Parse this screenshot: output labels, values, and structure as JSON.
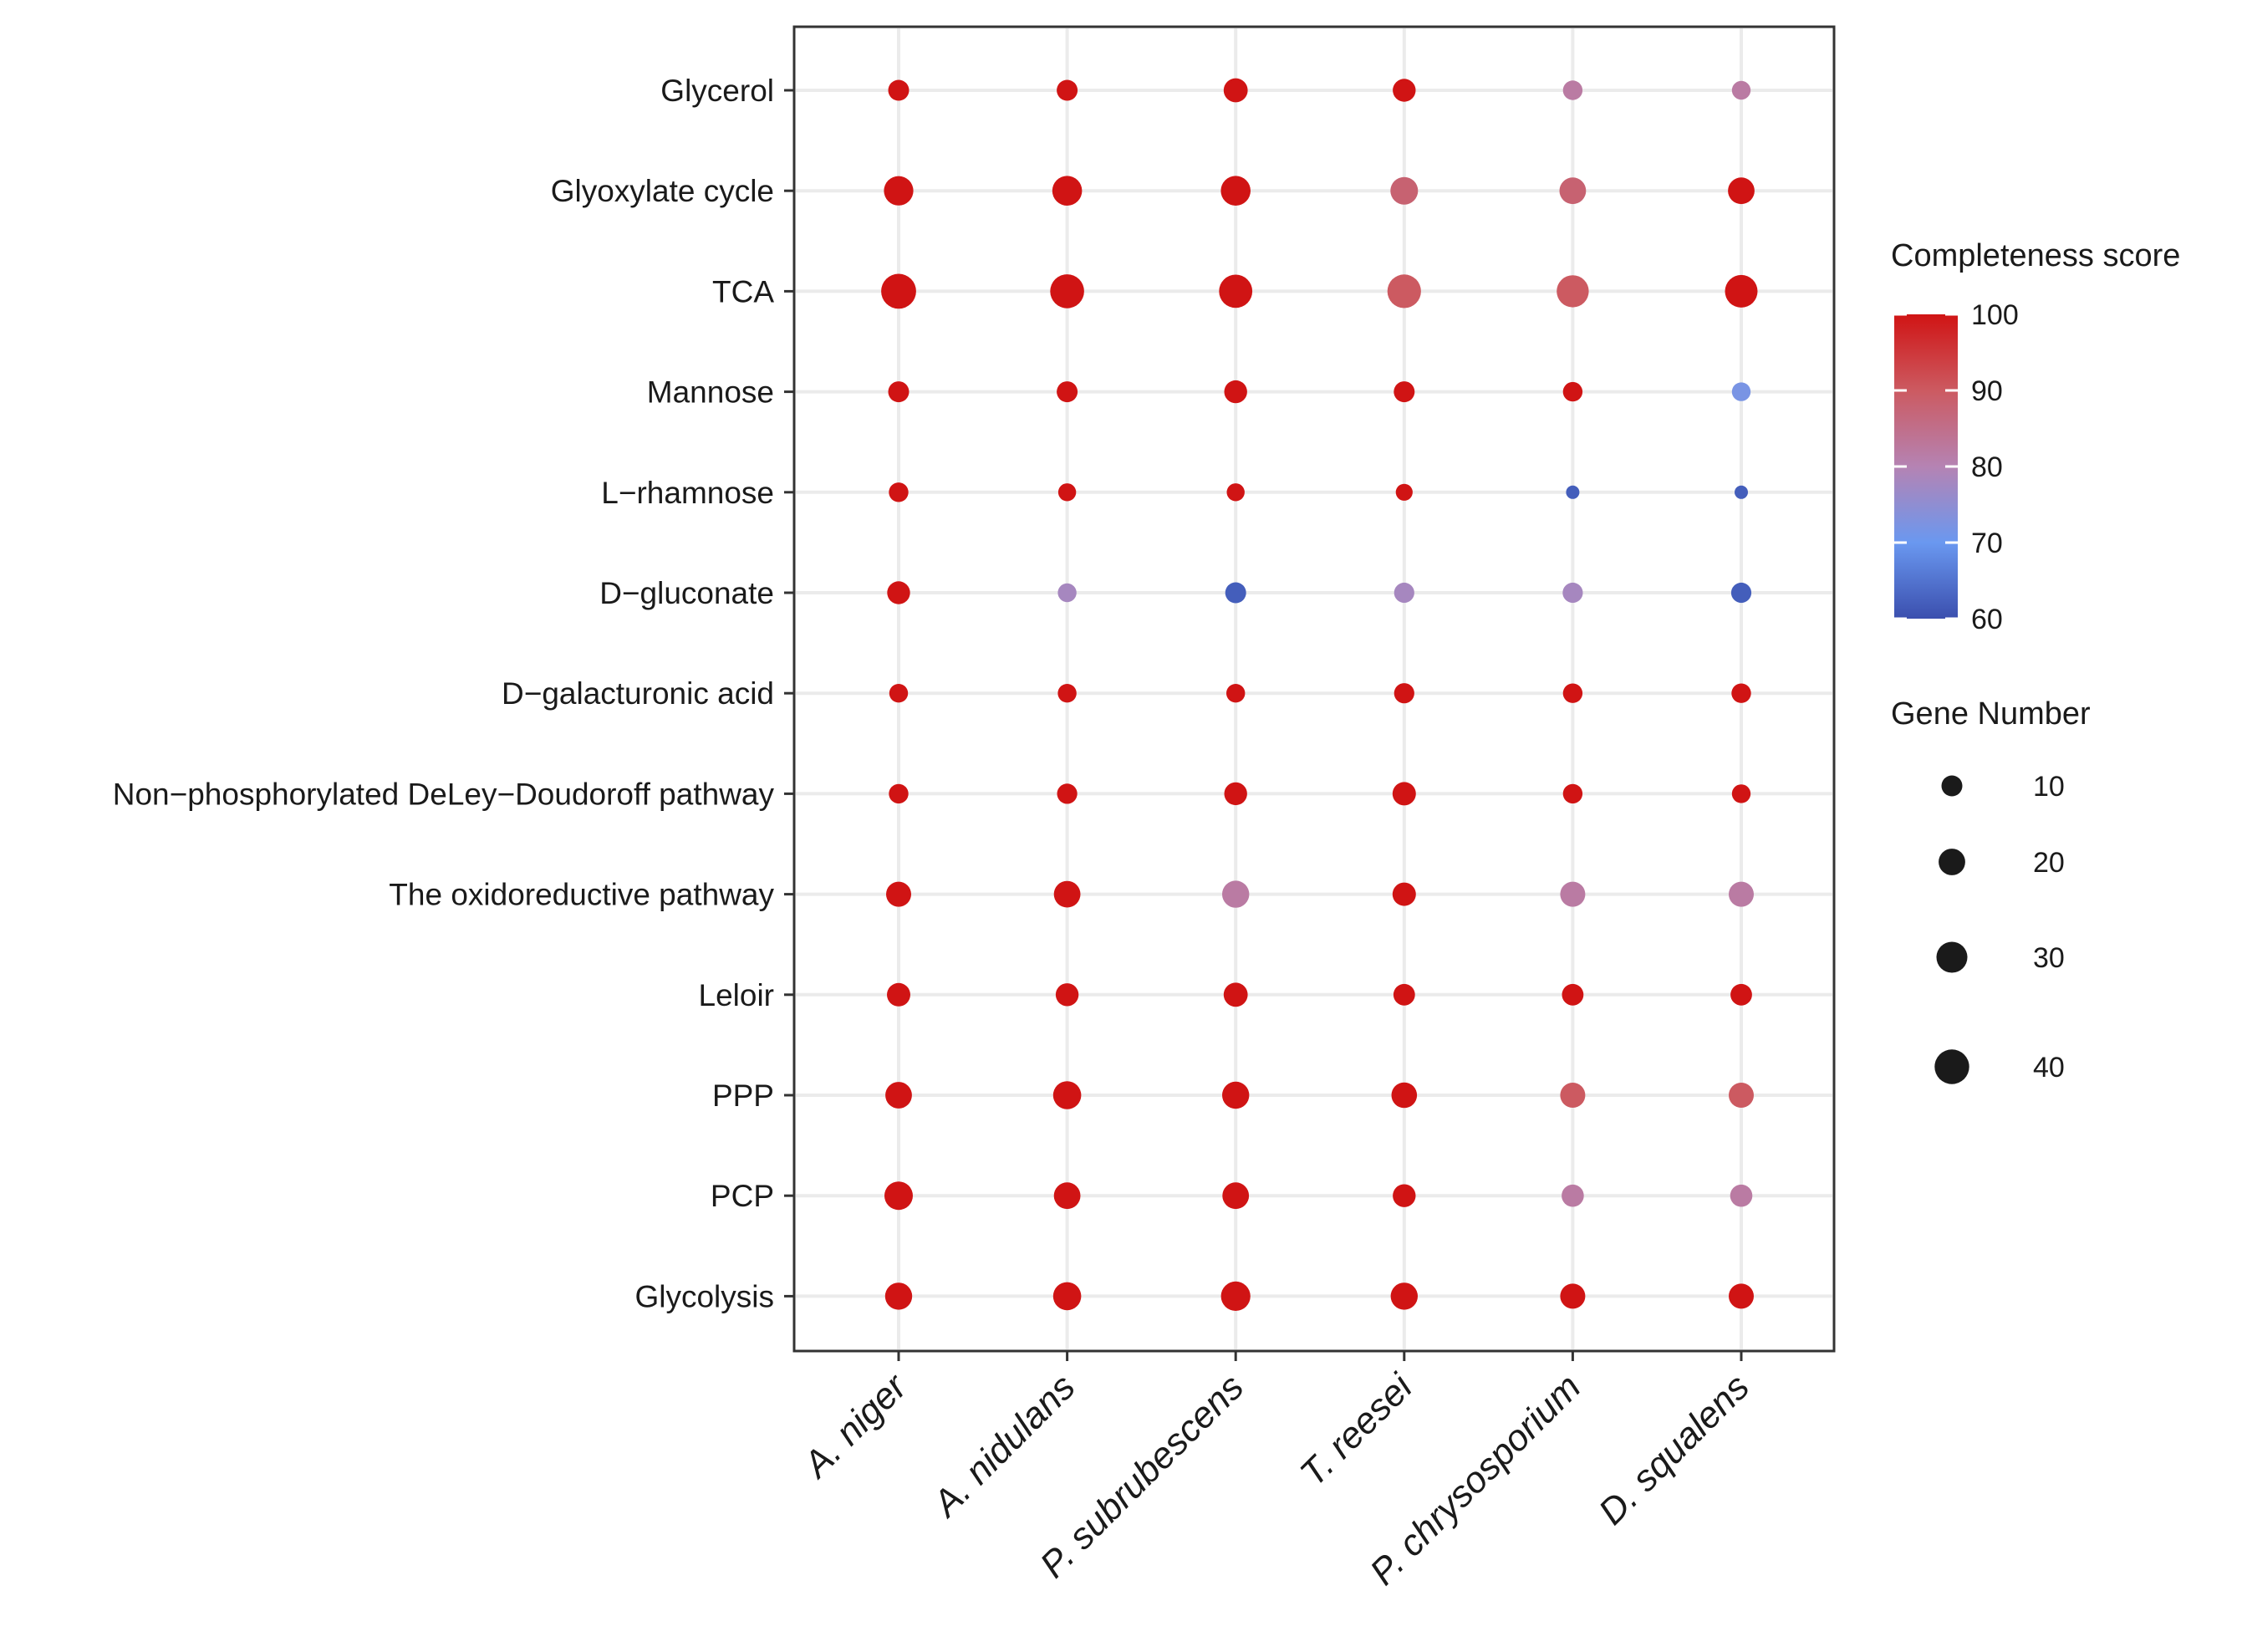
{
  "chart_data": {
    "type": "scatter",
    "title": "",
    "xlabel": "",
    "ylabel": "",
    "x_categories": [
      "A. niger",
      "A. nidulans",
      "P. subrubescens",
      "T. reesei",
      "P. chrysosporium",
      "D. squalens"
    ],
    "y_categories": [
      "Glycerol",
      "Glyoxylate cycle",
      "TCA",
      "Mannose",
      "L−rhamnose",
      "D−gluconate",
      "D−galacturonic acid",
      "Non−phosphorylated DeLey−Doudoroff pathway",
      "The oxidoreductive pathway",
      "Leloir",
      "PPP",
      "PCP",
      "Glycolysis"
    ],
    "points": [
      {
        "x": "A. niger",
        "y": "Glycerol",
        "gene_number": 10,
        "score": 100
      },
      {
        "x": "A. nidulans",
        "y": "Glycerol",
        "gene_number": 10,
        "score": 100
      },
      {
        "x": "P. subrubescens",
        "y": "Glycerol",
        "gene_number": 15,
        "score": 100
      },
      {
        "x": "T. reesei",
        "y": "Glycerol",
        "gene_number": 13,
        "score": 100
      },
      {
        "x": "P. chrysosporium",
        "y": "Glycerol",
        "gene_number": 8,
        "score": 82
      },
      {
        "x": "D. squalens",
        "y": "Glycerol",
        "gene_number": 7,
        "score": 82
      },
      {
        "x": "A. niger",
        "y": "Glyoxylate cycle",
        "gene_number": 26,
        "score": 100
      },
      {
        "x": "A. nidulans",
        "y": "Glyoxylate cycle",
        "gene_number": 27,
        "score": 100
      },
      {
        "x": "P. subrubescens",
        "y": "Glyoxylate cycle",
        "gene_number": 27,
        "score": 100
      },
      {
        "x": "T. reesei",
        "y": "Glyoxylate cycle",
        "gene_number": 22,
        "score": 88
      },
      {
        "x": "P. chrysosporium",
        "y": "Glyoxylate cycle",
        "gene_number": 20,
        "score": 88
      },
      {
        "x": "D. squalens",
        "y": "Glyoxylate cycle",
        "gene_number": 20,
        "score": 100
      },
      {
        "x": "A. niger",
        "y": "TCA",
        "gene_number": 41,
        "score": 100
      },
      {
        "x": "A. nidulans",
        "y": "TCA",
        "gene_number": 38,
        "score": 100
      },
      {
        "x": "P. subrubescens",
        "y": "TCA",
        "gene_number": 36,
        "score": 100
      },
      {
        "x": "T. reesei",
        "y": "TCA",
        "gene_number": 37,
        "score": 90
      },
      {
        "x": "P. chrysosporium",
        "y": "TCA",
        "gene_number": 33,
        "score": 90
      },
      {
        "x": "D. squalens",
        "y": "TCA",
        "gene_number": 34,
        "score": 100
      },
      {
        "x": "A. niger",
        "y": "Mannose",
        "gene_number": 10,
        "score": 100
      },
      {
        "x": "A. nidulans",
        "y": "Mannose",
        "gene_number": 10,
        "score": 100
      },
      {
        "x": "P. subrubescens",
        "y": "Mannose",
        "gene_number": 13,
        "score": 100
      },
      {
        "x": "T. reesei",
        "y": "Mannose",
        "gene_number": 10,
        "score": 100
      },
      {
        "x": "P. chrysosporium",
        "y": "Mannose",
        "gene_number": 8,
        "score": 100
      },
      {
        "x": "D. squalens",
        "y": "Mannose",
        "gene_number": 7,
        "score": 72
      },
      {
        "x": "A. niger",
        "y": "L−rhamnose",
        "gene_number": 8,
        "score": 100
      },
      {
        "x": "A. nidulans",
        "y": "L−rhamnose",
        "gene_number": 6,
        "score": 100
      },
      {
        "x": "P. subrubescens",
        "y": "L−rhamnose",
        "gene_number": 6,
        "score": 100
      },
      {
        "x": "T. reesei",
        "y": "L−rhamnose",
        "gene_number": 5,
        "score": 100
      },
      {
        "x": "P. chrysosporium",
        "y": "L−rhamnose",
        "gene_number": 2,
        "score": 62
      },
      {
        "x": "D. squalens",
        "y": "L−rhamnose",
        "gene_number": 2,
        "score": 62
      },
      {
        "x": "A. niger",
        "y": "D−gluconate",
        "gene_number": 13,
        "score": 100
      },
      {
        "x": "A. nidulans",
        "y": "D−gluconate",
        "gene_number": 7,
        "score": 78
      },
      {
        "x": "P. subrubescens",
        "y": "D−gluconate",
        "gene_number": 10,
        "score": 62
      },
      {
        "x": "T. reesei",
        "y": "D−gluconate",
        "gene_number": 9,
        "score": 78
      },
      {
        "x": "P. chrysosporium",
        "y": "D−gluconate",
        "gene_number": 9,
        "score": 78
      },
      {
        "x": "D. squalens",
        "y": "D−gluconate",
        "gene_number": 9,
        "score": 62
      },
      {
        "x": "A. niger",
        "y": "D−galacturonic acid",
        "gene_number": 7,
        "score": 100
      },
      {
        "x": "A. nidulans",
        "y": "D−galacturonic acid",
        "gene_number": 7,
        "score": 100
      },
      {
        "x": "P. subrubescens",
        "y": "D−galacturonic acid",
        "gene_number": 7,
        "score": 100
      },
      {
        "x": "T. reesei",
        "y": "D−galacturonic acid",
        "gene_number": 9,
        "score": 100
      },
      {
        "x": "P. chrysosporium",
        "y": "D−galacturonic acid",
        "gene_number": 8,
        "score": 100
      },
      {
        "x": "D. squalens",
        "y": "D−galacturonic acid",
        "gene_number": 8,
        "score": 100
      },
      {
        "x": "A. niger",
        "y": "Non−phosphorylated DeLey−Doudoroff pathway",
        "gene_number": 8,
        "score": 100
      },
      {
        "x": "A. nidulans",
        "y": "Non−phosphorylated DeLey−Doudoroff pathway",
        "gene_number": 9,
        "score": 100
      },
      {
        "x": "P. subrubescens",
        "y": "Non−phosphorylated DeLey−Doudoroff pathway",
        "gene_number": 13,
        "score": 100
      },
      {
        "x": "T. reesei",
        "y": "Non−phosphorylated DeLey−Doudoroff pathway",
        "gene_number": 14,
        "score": 100
      },
      {
        "x": "P. chrysosporium",
        "y": "Non−phosphorylated DeLey−Doudoroff pathway",
        "gene_number": 8,
        "score": 100
      },
      {
        "x": "D. squalens",
        "y": "Non−phosphorylated DeLey−Doudoroff pathway",
        "gene_number": 7,
        "score": 100
      },
      {
        "x": "A. niger",
        "y": "The oxidoreductive pathway",
        "gene_number": 17,
        "score": 100
      },
      {
        "x": "A. nidulans",
        "y": "The oxidoreductive pathway",
        "gene_number": 20,
        "score": 100
      },
      {
        "x": "P. subrubescens",
        "y": "The oxidoreductive pathway",
        "gene_number": 21,
        "score": 82
      },
      {
        "x": "T. reesei",
        "y": "The oxidoreductive pathway",
        "gene_number": 14,
        "score": 100
      },
      {
        "x": "P. chrysosporium",
        "y": "The oxidoreductive pathway",
        "gene_number": 17,
        "score": 82
      },
      {
        "x": "D. squalens",
        "y": "The oxidoreductive pathway",
        "gene_number": 17,
        "score": 82
      },
      {
        "x": "A. niger",
        "y": "Leloir",
        "gene_number": 14,
        "score": 100
      },
      {
        "x": "A. nidulans",
        "y": "Leloir",
        "gene_number": 13,
        "score": 100
      },
      {
        "x": "P. subrubescens",
        "y": "Leloir",
        "gene_number": 15,
        "score": 100
      },
      {
        "x": "T. reesei",
        "y": "Leloir",
        "gene_number": 11,
        "score": 100
      },
      {
        "x": "P. chrysosporium",
        "y": "Leloir",
        "gene_number": 11,
        "score": 100
      },
      {
        "x": "D. squalens",
        "y": "Leloir",
        "gene_number": 11,
        "score": 100
      },
      {
        "x": "A. niger",
        "y": "PPP",
        "gene_number": 20,
        "score": 100
      },
      {
        "x": "A. nidulans",
        "y": "PPP",
        "gene_number": 23,
        "score": 100
      },
      {
        "x": "P. subrubescens",
        "y": "PPP",
        "gene_number": 21,
        "score": 100
      },
      {
        "x": "T. reesei",
        "y": "PPP",
        "gene_number": 18,
        "score": 100
      },
      {
        "x": "P. chrysosporium",
        "y": "PPP",
        "gene_number": 17,
        "score": 90
      },
      {
        "x": "D. squalens",
        "y": "PPP",
        "gene_number": 17,
        "score": 90
      },
      {
        "x": "A. niger",
        "y": "PCP",
        "gene_number": 24,
        "score": 100
      },
      {
        "x": "A. nidulans",
        "y": "PCP",
        "gene_number": 20,
        "score": 100
      },
      {
        "x": "P. subrubescens",
        "y": "PCP",
        "gene_number": 20,
        "score": 100
      },
      {
        "x": "T. reesei",
        "y": "PCP",
        "gene_number": 13,
        "score": 100
      },
      {
        "x": "P. chrysosporium",
        "y": "PCP",
        "gene_number": 12,
        "score": 82
      },
      {
        "x": "D. squalens",
        "y": "PCP",
        "gene_number": 12,
        "score": 82
      },
      {
        "x": "A. niger",
        "y": "Glycolysis",
        "gene_number": 21,
        "score": 100
      },
      {
        "x": "A. nidulans",
        "y": "Glycolysis",
        "gene_number": 23,
        "score": 100
      },
      {
        "x": "P. subrubescens",
        "y": "Glycolysis",
        "gene_number": 26,
        "score": 100
      },
      {
        "x": "T. reesei",
        "y": "Glycolysis",
        "gene_number": 21,
        "score": 100
      },
      {
        "x": "P. chrysosporium",
        "y": "Glycolysis",
        "gene_number": 17,
        "score": 100
      },
      {
        "x": "D. squalens",
        "y": "Glycolysis",
        "gene_number": 17,
        "score": 100
      }
    ],
    "color_legend": {
      "title": "Completeness score",
      "ticks": [
        60,
        70,
        80,
        90,
        100
      ],
      "range": [
        60,
        100
      ],
      "colors": {
        "low": "#3b4fae",
        "mid_low": "#6a98f0",
        "mid": "#b583b3",
        "high": "#d01414"
      }
    },
    "size_legend": {
      "title": "Gene Number",
      "values": [
        10,
        20,
        30,
        40
      ]
    },
    "grid": true,
    "legend_position": "right"
  }
}
